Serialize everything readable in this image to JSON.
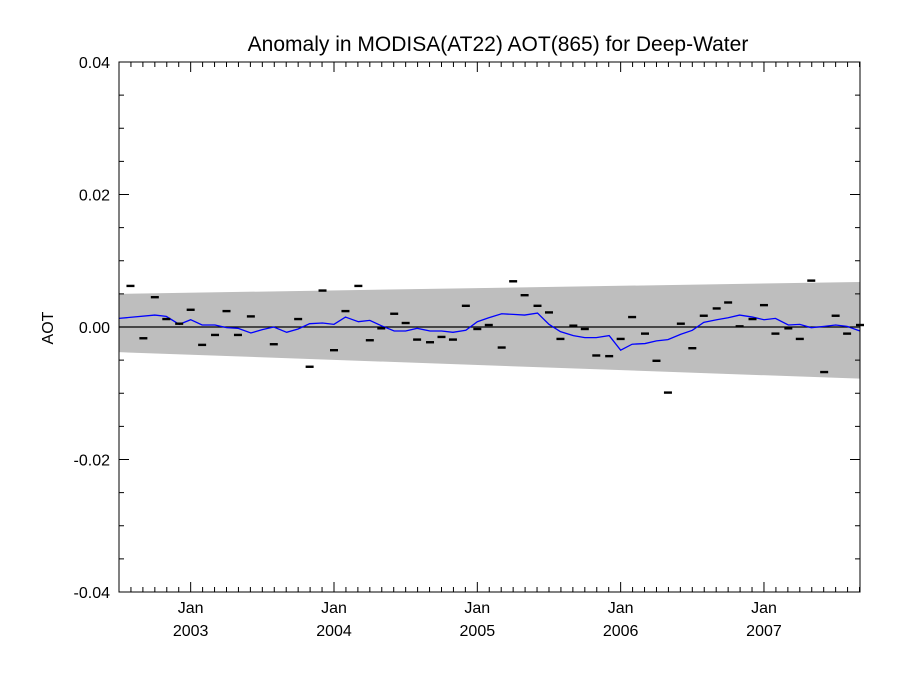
{
  "chart_data": {
    "type": "line",
    "title": "Anomaly in MODISA(AT22) AOT(865) for Deep-Water",
    "xlabel": "",
    "ylabel": "AOT",
    "ylim": [
      -0.04,
      0.04
    ],
    "yticks": [
      -0.04,
      -0.02,
      0.0,
      0.02,
      0.04
    ],
    "ytick_labels": [
      "-0.04",
      "-0.02",
      "0.00",
      "0.02",
      "0.04"
    ],
    "xlim": [
      2002.5,
      2007.67
    ],
    "xticks": [
      {
        "x": 2003.0,
        "month": "Jan",
        "year": "2003"
      },
      {
        "x": 2004.0,
        "month": "Jan",
        "year": "2004"
      },
      {
        "x": 2005.0,
        "month": "Jan",
        "year": "2005"
      },
      {
        "x": 2006.0,
        "month": "Jan",
        "year": "2006"
      },
      {
        "x": 2007.0,
        "month": "Jan",
        "year": "2007"
      }
    ],
    "zero_line": 0.0,
    "envelope": {
      "x": [
        2002.5,
        2007.67
      ],
      "upper": [
        0.005,
        0.0068
      ],
      "lower": [
        -0.0038,
        -0.0078
      ],
      "color": "#bebebe"
    },
    "monthly_anomaly": {
      "color": "#000000",
      "x": [
        2002.58,
        2002.67,
        2002.75,
        2002.83,
        2002.92,
        2003.0,
        2003.08,
        2003.17,
        2003.25,
        2003.33,
        2003.42,
        2003.58,
        2003.75,
        2003.83,
        2003.92,
        2004.0,
        2004.08,
        2004.17,
        2004.25,
        2004.33,
        2004.42,
        2004.5,
        2004.58,
        2004.67,
        2004.75,
        2004.83,
        2004.92,
        2005.0,
        2005.08,
        2005.17,
        2005.25,
        2005.33,
        2005.42,
        2005.5,
        2005.58,
        2005.67,
        2005.75,
        2005.83,
        2005.92,
        2006.0,
        2006.08,
        2006.17,
        2006.25,
        2006.33,
        2006.42,
        2006.5,
        2006.58,
        2006.67,
        2006.75,
        2006.83,
        2006.92,
        2007.0,
        2007.08,
        2007.17,
        2007.25,
        2007.33,
        2007.42,
        2007.5,
        2007.58,
        2007.67
      ],
      "y": [
        0.0062,
        -0.0017,
        0.0045,
        0.0012,
        0.0005,
        0.0026,
        -0.0027,
        -0.0012,
        0.0024,
        -0.0012,
        0.0016,
        -0.0026,
        0.0012,
        -0.006,
        0.0055,
        -0.0035,
        0.0024,
        0.0062,
        -0.002,
        -0.0002,
        0.002,
        0.0006,
        -0.0019,
        -0.0023,
        -0.0015,
        -0.0019,
        0.0032,
        -0.0003,
        0.0003,
        -0.0031,
        0.0069,
        0.0048,
        0.0032,
        0.0022,
        -0.0018,
        0.0002,
        -0.0003,
        -0.0043,
        -0.0044,
        -0.0018,
        0.0015,
        -0.001,
        -0.0051,
        -0.0099,
        0.0005,
        -0.0032,
        0.0017,
        0.0028,
        0.0037,
        0.0001,
        0.0012,
        0.0033,
        -0.001,
        -0.0002,
        -0.0018,
        0.007,
        -0.0068,
        0.0017,
        -0.001,
        0.0003
      ]
    },
    "running_mean": {
      "color": "#0000ff",
      "x": [
        2002.5,
        2002.75,
        2002.83,
        2002.92,
        2003.0,
        2003.08,
        2003.17,
        2003.25,
        2003.33,
        2003.42,
        2003.5,
        2003.58,
        2003.67,
        2003.75,
        2003.83,
        2003.92,
        2004.0,
        2004.08,
        2004.17,
        2004.25,
        2004.33,
        2004.42,
        2004.5,
        2004.58,
        2004.67,
        2004.75,
        2004.83,
        2004.92,
        2005.0,
        2005.08,
        2005.17,
        2005.25,
        2005.33,
        2005.42,
        2005.5,
        2005.58,
        2005.67,
        2005.75,
        2005.83,
        2005.92,
        2006.0,
        2006.08,
        2006.17,
        2006.25,
        2006.33,
        2006.42,
        2006.5,
        2006.58,
        2006.67,
        2006.75,
        2006.83,
        2006.92,
        2007.0,
        2007.08,
        2007.17,
        2007.25,
        2007.33,
        2007.42,
        2007.5,
        2007.58,
        2007.67
      ],
      "y": [
        0.0013,
        0.0018,
        0.0016,
        0.0004,
        0.0011,
        0.0003,
        0.0003,
        -0.0001,
        -0.0002,
        -0.0009,
        -0.0004,
        0.0,
        -0.0008,
        -0.0003,
        0.0005,
        0.0006,
        0.0004,
        0.0015,
        0.0008,
        0.001,
        0.0002,
        -0.0006,
        -0.0006,
        -0.0002,
        -0.0006,
        -0.0006,
        -0.0008,
        -0.0005,
        0.0008,
        0.0014,
        0.002,
        0.0019,
        0.0018,
        0.0021,
        0.0004,
        -0.0007,
        -0.0013,
        -0.0016,
        -0.0016,
        -0.0013,
        -0.0035,
        -0.0026,
        -0.0025,
        -0.0021,
        -0.0019,
        -0.0011,
        -0.0005,
        0.0007,
        0.0011,
        0.0014,
        0.0018,
        0.0015,
        0.0011,
        0.0013,
        0.0003,
        0.0004,
        -0.0001,
        0.0001,
        0.0003,
        0.0001,
        -0.0006
      ]
    }
  }
}
